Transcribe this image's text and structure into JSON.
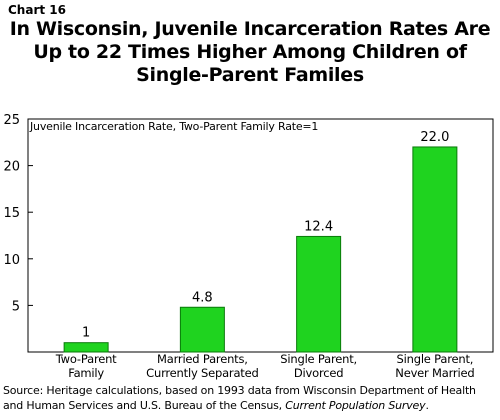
{
  "chart_number": "Chart 16",
  "title_lines": [
    "In Wisconsin, Juvenile Incarceration Rates Are",
    "Up to 22 Times Higher Among Children of",
    "Single-Parent Familes"
  ],
  "source": {
    "prefix": "Source: Heritage calculations, based on 1993 data from Wisconsin Department of Health and Human Services and U.S. Bureau of the Census, ",
    "publication": "Current Population Survey",
    "suffix": "."
  },
  "colors": {
    "bar": "#1fd31f",
    "bar_edge": "#0a7a0a"
  },
  "chart_data": {
    "type": "bar",
    "ylabel": "Juvenile Incarceration Rate, Two-Parent Family Rate=1",
    "ylim": [
      0,
      25
    ],
    "yticks": [
      5,
      10,
      15,
      20,
      25
    ],
    "categories": [
      [
        "Two-Parent",
        "Family"
      ],
      [
        "Married Parents,",
        "Currently Separated"
      ],
      [
        "Single Parent,",
        "Divorced"
      ],
      [
        "Single Parent,",
        "Never Married"
      ]
    ],
    "values": [
      1,
      4.8,
      12.4,
      22.0
    ],
    "value_labels": [
      "1",
      "4.8",
      "12.4",
      "22.0"
    ],
    "grid": false
  }
}
